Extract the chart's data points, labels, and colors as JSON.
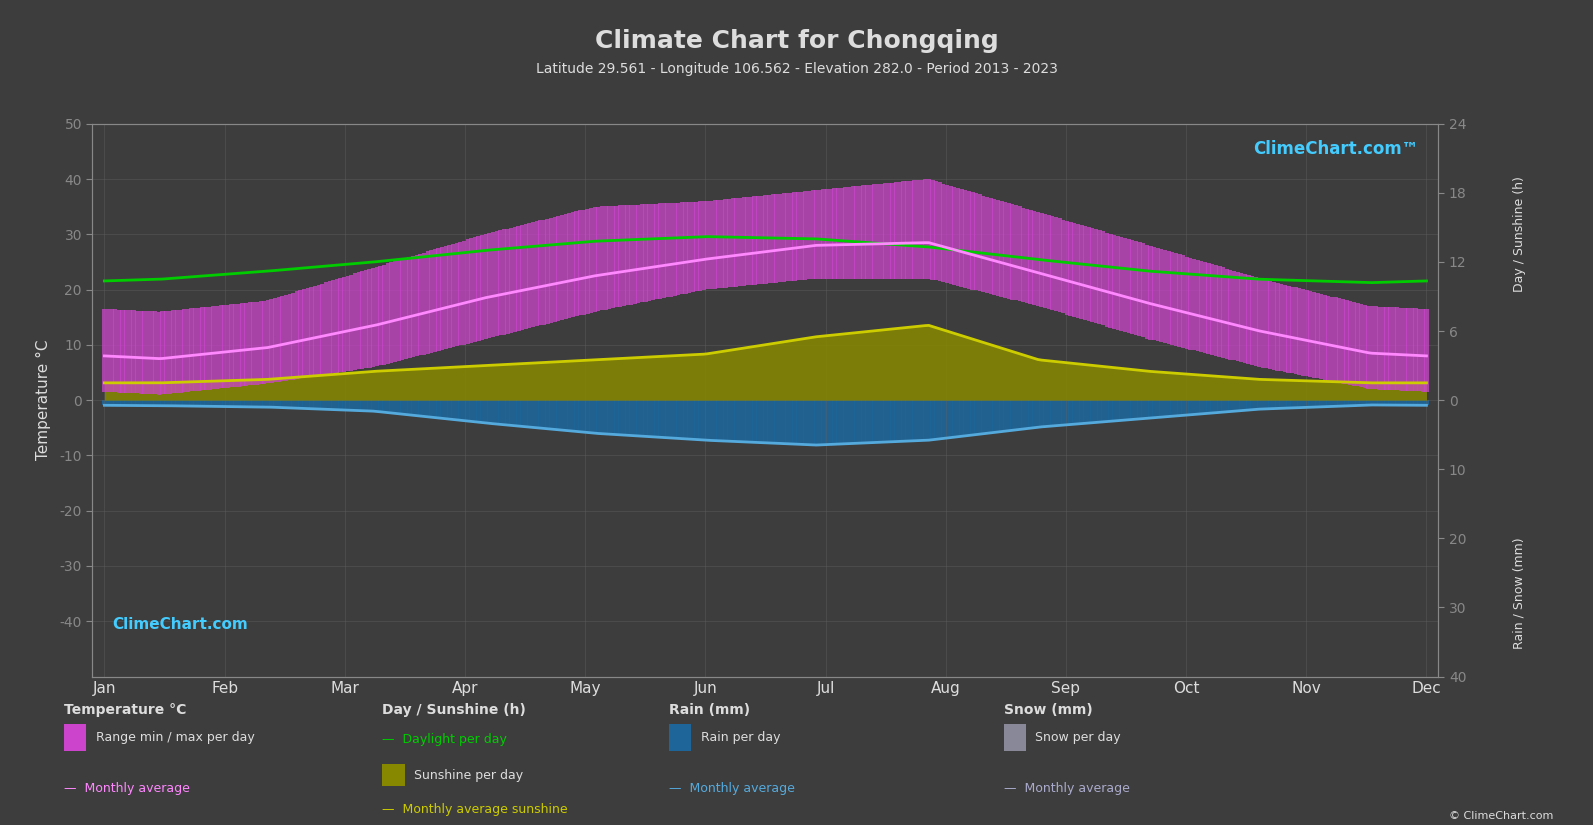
{
  "title": "Climate Chart for Chongqing",
  "subtitle": "Latitude 29.561 - Longitude 106.562 - Elevation 282.0 - Period 2013 - 2023",
  "background_color": "#3d3d3d",
  "plot_bg_color": "#3d3d3d",
  "months": [
    "Jan",
    "Feb",
    "Mar",
    "Apr",
    "May",
    "Jun",
    "Jul",
    "Aug",
    "Sep",
    "Oct",
    "Nov",
    "Dec"
  ],
  "temp_avg": [
    7.5,
    9.5,
    13.5,
    18.5,
    22.5,
    25.5,
    28.0,
    28.5,
    23.0,
    17.5,
    12.5,
    8.5
  ],
  "temp_max_daily_abs": [
    16,
    18,
    24,
    30,
    35,
    36,
    38,
    40,
    34,
    28,
    22,
    17
  ],
  "temp_min_daily_abs": [
    1,
    3,
    6,
    11,
    16,
    20,
    22,
    22,
    17,
    11,
    6,
    2
  ],
  "sunshine_avg_h": [
    1.5,
    1.8,
    2.5,
    3.0,
    3.5,
    4.0,
    5.5,
    6.5,
    3.5,
    2.5,
    1.8,
    1.5
  ],
  "daylight_avg_h": [
    10.5,
    11.2,
    12.0,
    13.0,
    13.8,
    14.2,
    14.0,
    13.3,
    12.2,
    11.2,
    10.5,
    10.2
  ],
  "rain_daily_mm": [
    0.8,
    1.0,
    1.6,
    3.3,
    4.8,
    5.8,
    6.5,
    5.8,
    3.9,
    2.6,
    1.3,
    0.7
  ],
  "rain_monthly_avg_line_mm": [
    0.8,
    1.0,
    1.6,
    3.3,
    4.8,
    5.8,
    6.5,
    5.8,
    3.9,
    2.6,
    1.3,
    0.7
  ],
  "snow_daily_mm": [
    0.05,
    0.02,
    0.0,
    0.0,
    0.0,
    0.0,
    0.0,
    0.0,
    0.0,
    0.0,
    0.0,
    0.03
  ],
  "temp_ylim_min": -50,
  "temp_ylim_max": 50,
  "sunshine_axis_max": 24,
  "rain_axis_max": 40,
  "color_temp_range_fill": "#cc44cc",
  "color_temp_avg_line": "#ff88ff",
  "color_sunshine_fill": "#888800",
  "color_sunshine_line": "#cccc00",
  "color_daylight_line": "#00cc00",
  "color_rain_fill": "#1e6699",
  "color_rain_line": "#55aadd",
  "color_snow_fill": "#888899",
  "color_snow_line": "#aaaacc",
  "color_grid": "#606060",
  "color_text": "#dddddd",
  "color_axis_line": "#888888",
  "color_logo": "#44ccff",
  "legend_temp_label": "Temperature °C",
  "legend_range_label": "Range min / max per day",
  "legend_avg_label": "Monthly average",
  "legend_day_label": "Day / Sunshine (h)",
  "legend_daylight_label": "Daylight per day",
  "legend_sunshine_label": "Sunshine per day",
  "legend_sunshine_avg_label": "Monthly average sunshine",
  "legend_rain_label": "Rain (mm)",
  "legend_rain_day_label": "Rain per day",
  "legend_rain_avg_label": "Monthly average",
  "legend_snow_label": "Snow (mm)",
  "legend_snow_day_label": "Snow per day",
  "legend_snow_avg_label": "Monthly average",
  "right_axis_top_label": "Day / Sunshine (h)",
  "right_axis_bot_label": "Rain / Snow (mm)",
  "ylabel": "Temperature °C",
  "copyright": "© ClimeChart.com"
}
